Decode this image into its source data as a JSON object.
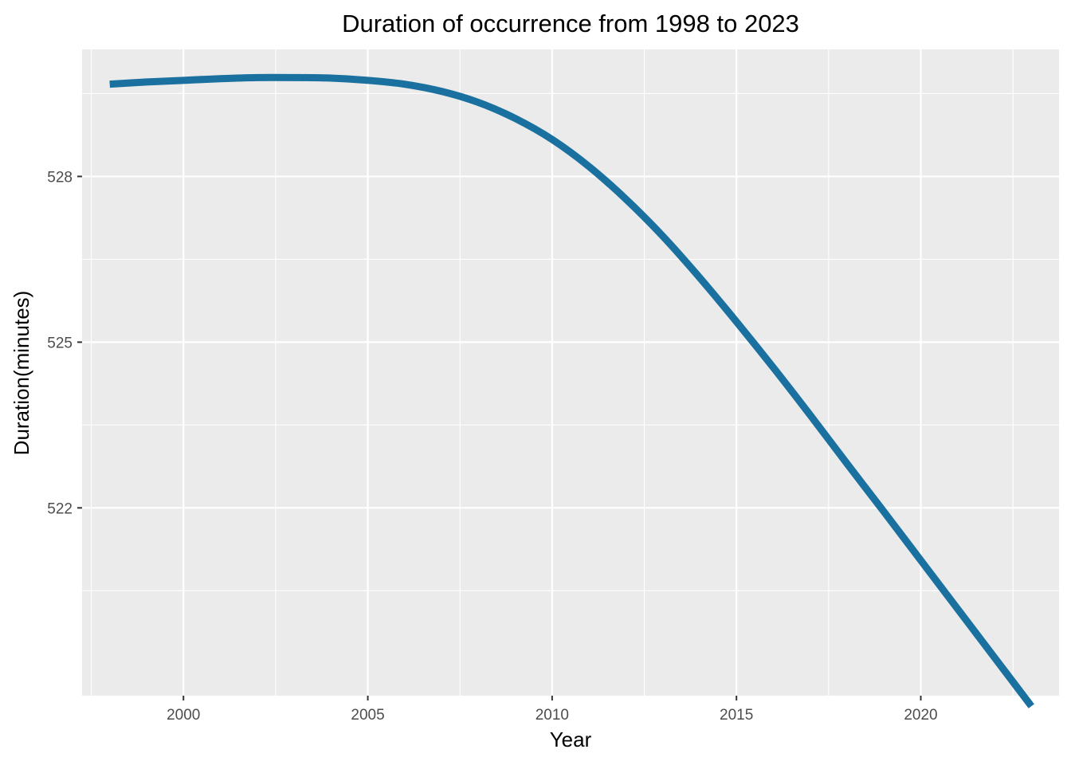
{
  "chart_data": {
    "type": "line",
    "title": "Duration of occurrence from 1998 to 2023",
    "xlabel": "Year",
    "ylabel": "Duration(minutes)",
    "xlim": [
      1997.25,
      2023.75
    ],
    "ylim": [
      518.6,
      530.3
    ],
    "x_ticks": [
      2000,
      2005,
      2010,
      2015,
      2020
    ],
    "x_tick_labels": [
      "2000",
      "2005",
      "2010",
      "2015",
      "2020"
    ],
    "y_ticks": [
      522,
      525,
      528
    ],
    "y_tick_labels": [
      "522",
      "525",
      "528"
    ],
    "grid": true,
    "legend": "none",
    "line_color": "#1a719f",
    "panel_color": "#ebebeb",
    "series": [
      {
        "x": [
          1998,
          1999,
          2000,
          2001,
          2002,
          2003,
          2004,
          2005,
          2006,
          2007,
          2008,
          2009,
          2010,
          2011,
          2012,
          2013,
          2014,
          2015,
          2016,
          2017,
          2018,
          2019,
          2020,
          2021,
          2022,
          2023
        ],
        "values": [
          529.67,
          529.71,
          529.74,
          529.77,
          529.79,
          529.79,
          529.78,
          529.74,
          529.67,
          529.54,
          529.34,
          529.05,
          528.67,
          528.18,
          527.59,
          526.92,
          526.17,
          525.37,
          524.54,
          523.68,
          522.8,
          521.93,
          521.05,
          520.17,
          519.29,
          518.41
        ]
      }
    ]
  }
}
